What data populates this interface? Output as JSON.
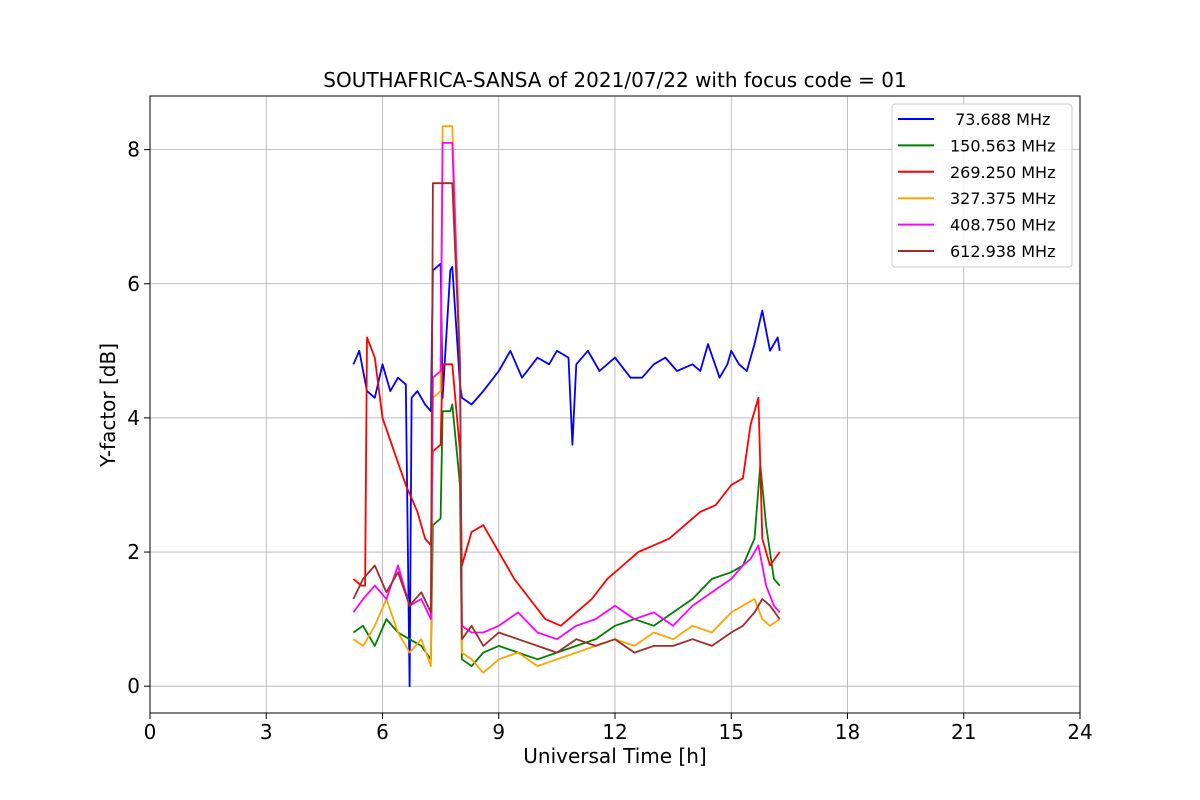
{
  "chart_data": {
    "type": "line",
    "title": "SOUTHAFRICA-SANSA of 2021/07/22 with focus code = 01",
    "xlabel": "Universal Time [h]",
    "ylabel": "Y-factor [dB]",
    "xlim": [
      0,
      24
    ],
    "ylim": [
      -0.4,
      8.8
    ],
    "xticks": [
      0,
      3,
      6,
      9,
      12,
      15,
      18,
      21,
      24
    ],
    "yticks": [
      0,
      2,
      4,
      6,
      8
    ],
    "xtick_labels": [
      "0",
      "3",
      "6",
      "9",
      "12",
      "15",
      "18",
      "21",
      "24"
    ],
    "ytick_labels": [
      "0",
      "2",
      "4",
      "6",
      "8"
    ],
    "grid": true,
    "legend_position": "top-right",
    "series": [
      {
        "name": " 73.688 MHz",
        "color": "#0000ff",
        "x": [
          5.25,
          5.4,
          5.6,
          5.8,
          6.0,
          6.2,
          6.4,
          6.6,
          6.7,
          6.75,
          6.9,
          7.1,
          7.25,
          7.3,
          7.5,
          7.55,
          7.75,
          7.8,
          8.0,
          8.05,
          8.3,
          8.6,
          9.0,
          9.3,
          9.6,
          10.0,
          10.3,
          10.5,
          10.8,
          10.9,
          11.0,
          11.3,
          11.6,
          12.0,
          12.4,
          12.7,
          13.0,
          13.3,
          13.6,
          14.0,
          14.2,
          14.4,
          14.7,
          14.9,
          15.0,
          15.2,
          15.4,
          15.6,
          15.8,
          16.0,
          16.2,
          16.25
        ],
        "y": [
          4.8,
          5.0,
          4.4,
          4.3,
          4.8,
          4.4,
          4.6,
          4.5,
          0.0,
          4.3,
          4.4,
          4.2,
          4.1,
          6.2,
          6.3,
          4.3,
          6.2,
          6.25,
          4.5,
          4.3,
          4.2,
          4.4,
          4.7,
          5.0,
          4.6,
          4.9,
          4.8,
          5.0,
          4.9,
          3.6,
          4.8,
          5.0,
          4.7,
          4.9,
          4.6,
          4.6,
          4.8,
          4.9,
          4.7,
          4.8,
          4.7,
          5.1,
          4.6,
          4.8,
          5.0,
          4.8,
          4.7,
          5.1,
          5.6,
          5.0,
          5.2,
          5.0
        ]
      },
      {
        "name": "150.563 MHz",
        "color": "#008000",
        "x": [
          5.25,
          5.5,
          5.8,
          6.1,
          6.4,
          6.7,
          7.0,
          7.25,
          7.3,
          7.5,
          7.55,
          7.75,
          7.8,
          8.0,
          8.05,
          8.3,
          8.6,
          9.0,
          9.5,
          10.0,
          10.5,
          11.0,
          11.5,
          12.0,
          12.5,
          13.0,
          13.5,
          14.0,
          14.5,
          15.0,
          15.3,
          15.6,
          15.75,
          15.9,
          16.1,
          16.25
        ],
        "y": [
          0.8,
          0.9,
          0.6,
          1.0,
          0.8,
          0.7,
          0.6,
          0.4,
          2.4,
          2.5,
          4.1,
          4.1,
          4.2,
          3.0,
          0.4,
          0.3,
          0.5,
          0.6,
          0.5,
          0.4,
          0.5,
          0.6,
          0.7,
          0.9,
          1.0,
          0.9,
          1.1,
          1.3,
          1.6,
          1.7,
          1.8,
          2.2,
          3.3,
          2.4,
          1.6,
          1.5
        ]
      },
      {
        "name": "269.250 MHz",
        "color": "#ff0000",
        "x": [
          5.25,
          5.45,
          5.55,
          5.6,
          5.8,
          6.0,
          6.3,
          6.6,
          6.9,
          7.1,
          7.25,
          7.3,
          7.5,
          7.55,
          7.75,
          7.8,
          8.0,
          8.05,
          8.3,
          8.6,
          9.0,
          9.4,
          9.8,
          10.2,
          10.6,
          11.0,
          11.4,
          11.8,
          12.2,
          12.6,
          13.0,
          13.4,
          13.8,
          14.2,
          14.6,
          15.0,
          15.3,
          15.5,
          15.7,
          15.8,
          16.0,
          16.25
        ],
        "y": [
          1.6,
          1.5,
          1.5,
          5.2,
          4.9,
          4.0,
          3.5,
          3.0,
          2.6,
          2.2,
          2.1,
          3.5,
          3.6,
          4.8,
          4.8,
          4.8,
          3.5,
          1.8,
          2.3,
          2.4,
          2.0,
          1.6,
          1.3,
          1.0,
          0.9,
          1.1,
          1.3,
          1.6,
          1.8,
          2.0,
          2.1,
          2.2,
          2.4,
          2.6,
          2.7,
          3.0,
          3.1,
          3.9,
          4.3,
          2.2,
          1.8,
          2.0
        ]
      },
      {
        "name": "327.375 MHz",
        "color": "#ffa500",
        "x": [
          5.25,
          5.5,
          5.8,
          6.1,
          6.4,
          6.7,
          7.0,
          7.25,
          7.3,
          7.5,
          7.55,
          7.75,
          7.8,
          8.0,
          8.05,
          8.3,
          8.6,
          9.0,
          9.5,
          10.0,
          10.5,
          11.0,
          11.5,
          12.0,
          12.5,
          13.0,
          13.5,
          14.0,
          14.5,
          15.0,
          15.3,
          15.6,
          15.8,
          16.0,
          16.25
        ],
        "y": [
          0.7,
          0.6,
          0.9,
          1.3,
          0.8,
          0.5,
          0.7,
          0.3,
          4.3,
          4.4,
          8.35,
          8.35,
          8.35,
          4.9,
          0.5,
          0.4,
          0.2,
          0.4,
          0.5,
          0.3,
          0.4,
          0.5,
          0.6,
          0.7,
          0.6,
          0.8,
          0.7,
          0.9,
          0.8,
          1.1,
          1.2,
          1.3,
          1.0,
          0.9,
          1.0
        ]
      },
      {
        "name": "408.750 MHz",
        "color": "#ff00ff",
        "x": [
          5.25,
          5.5,
          5.8,
          6.1,
          6.4,
          6.7,
          7.0,
          7.25,
          7.3,
          7.5,
          7.55,
          7.75,
          7.8,
          8.0,
          8.05,
          8.3,
          8.6,
          9.0,
          9.5,
          10.0,
          10.5,
          11.0,
          11.5,
          12.0,
          12.5,
          13.0,
          13.5,
          14.0,
          14.5,
          15.0,
          15.3,
          15.5,
          15.7,
          15.9,
          16.1,
          16.25
        ],
        "y": [
          1.1,
          1.3,
          1.5,
          1.3,
          1.8,
          1.2,
          1.3,
          1.0,
          4.6,
          4.7,
          8.1,
          8.1,
          8.1,
          4.7,
          0.9,
          0.8,
          0.8,
          0.9,
          1.1,
          0.8,
          0.7,
          0.9,
          1.0,
          1.2,
          1.0,
          1.1,
          0.9,
          1.2,
          1.4,
          1.6,
          1.8,
          1.9,
          2.1,
          1.5,
          1.2,
          1.1
        ]
      },
      {
        "name": "612.938 MHz",
        "color": "#a52a2a",
        "x": [
          5.25,
          5.5,
          5.8,
          6.1,
          6.4,
          6.7,
          7.0,
          7.25,
          7.3,
          7.5,
          7.55,
          7.75,
          7.8,
          8.0,
          8.05,
          8.3,
          8.6,
          9.0,
          9.5,
          10.0,
          10.5,
          11.0,
          11.5,
          12.0,
          12.5,
          13.0,
          13.5,
          14.0,
          14.5,
          15.0,
          15.3,
          15.6,
          15.8,
          16.0,
          16.25
        ],
        "y": [
          1.3,
          1.6,
          1.8,
          1.4,
          1.7,
          1.2,
          1.4,
          1.1,
          7.5,
          7.5,
          7.5,
          7.5,
          7.5,
          4.8,
          0.7,
          0.9,
          0.6,
          0.8,
          0.7,
          0.6,
          0.5,
          0.7,
          0.6,
          0.7,
          0.5,
          0.6,
          0.6,
          0.7,
          0.6,
          0.8,
          0.9,
          1.1,
          1.3,
          1.2,
          1.0
        ]
      }
    ]
  }
}
